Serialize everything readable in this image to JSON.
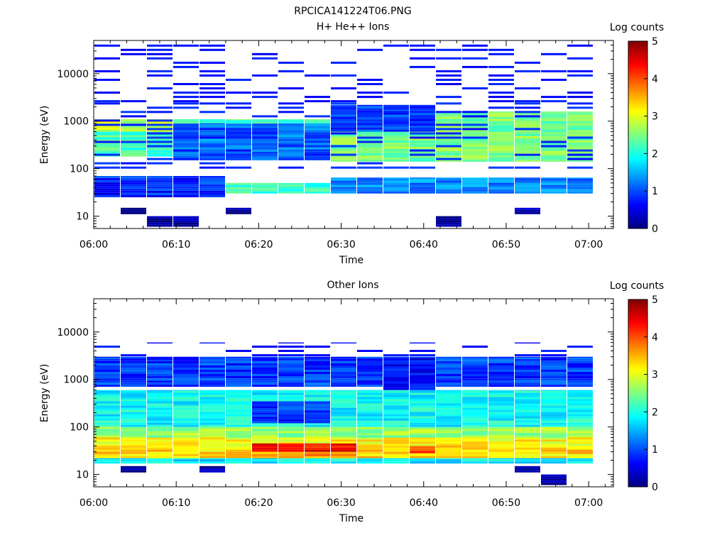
{
  "figure_title": "RPCICA141224T06.PNG",
  "colormap": [
    "#00007f",
    "#0000ff",
    "#007fff",
    "#00ffff",
    "#7fff7f",
    "#ffff00",
    "#ff7f00",
    "#ff0000",
    "#7f0000"
  ],
  "chart_data": [
    {
      "type": "heatmap",
      "title": "H+ He++ Ions",
      "xlabel": "Time",
      "ylabel": "Energy (eV)",
      "x_ticks": [
        "06:00",
        "06:10",
        "06:20",
        "06:30",
        "06:40",
        "06:50",
        "07:00"
      ],
      "y_ticks": [
        "10",
        "100",
        "1000",
        "10000"
      ],
      "y_scale": "log",
      "ylim": [
        5.5,
        50000
      ],
      "xlim_minutes": [
        0,
        63
      ],
      "colorbar": {
        "label": "Log counts",
        "ticks": [
          "0",
          "1",
          "2",
          "3",
          "4",
          "5"
        ],
        "range": [
          0,
          5
        ]
      },
      "n_columns": 19,
      "bands": [
        {
          "cols": [
            0,
            18
          ],
          "emin": 180,
          "emax": 1100,
          "value": 2.2
        },
        {
          "cols": [
            9,
            18
          ],
          "emin": 140,
          "emax": 1600,
          "value": 2.5
        },
        {
          "cols": [
            0,
            2
          ],
          "emin": 600,
          "emax": 1100,
          "value": 2.8
        },
        {
          "cols": [
            3,
            8
          ],
          "emin": 150,
          "emax": 900,
          "value": 1.2
        },
        {
          "cols": [
            5,
            8
          ],
          "emin": 30,
          "emax": 50,
          "value": 2.1
        },
        {
          "cols": [
            9,
            18
          ],
          "emin": 30,
          "emax": 65,
          "value": 1.3
        },
        {
          "cols": [
            0,
            4
          ],
          "emin": 25,
          "emax": 70,
          "value": 0.8
        },
        {
          "cols": [
            9,
            12
          ],
          "emin": 600,
          "emax": 2200,
          "value": 0.9
        },
        {
          "cols": [
            0,
            18
          ],
          "emin": 2500,
          "emax": 45000,
          "value": 0.7,
          "sparse": true
        },
        {
          "cols": [
            0,
            18
          ],
          "emin": 100,
          "emax": 2500,
          "value": 0.8,
          "sparse": true
        },
        {
          "cols": [
            1,
            1
          ],
          "emin": 11,
          "emax": 15,
          "value": 0.2
        },
        {
          "cols": [
            2,
            3
          ],
          "emin": 6,
          "emax": 10,
          "value": 0.1
        },
        {
          "cols": [
            5,
            5
          ],
          "emin": 11,
          "emax": 15,
          "value": 0.2
        },
        {
          "cols": [
            13,
            13
          ],
          "emin": 6,
          "emax": 10,
          "value": 0.1
        },
        {
          "cols": [
            16,
            16
          ],
          "emin": 11,
          "emax": 15,
          "value": 0.2
        }
      ]
    },
    {
      "type": "heatmap",
      "title": "Other Ions",
      "xlabel": "Time",
      "ylabel": "Energy (eV)",
      "x_ticks": [
        "06:00",
        "06:10",
        "06:20",
        "06:30",
        "06:40",
        "06:50",
        "07:00"
      ],
      "y_ticks": [
        "10",
        "100",
        "1000",
        "10000"
      ],
      "y_scale": "log",
      "ylim": [
        5.5,
        50000
      ],
      "xlim_minutes": [
        0,
        63
      ],
      "colorbar": {
        "label": "Log counts",
        "ticks": [
          "0",
          "1",
          "2",
          "3",
          "4",
          "5"
        ],
        "range": [
          0,
          5
        ]
      },
      "n_columns": 19,
      "bands": [
        {
          "cols": [
            0,
            18
          ],
          "emin": 100,
          "emax": 600,
          "value": 1.9
        },
        {
          "cols": [
            0,
            18
          ],
          "emin": 60,
          "emax": 100,
          "value": 2.6
        },
        {
          "cols": [
            0,
            18
          ],
          "emin": 40,
          "emax": 60,
          "value": 3.1
        },
        {
          "cols": [
            0,
            18
          ],
          "emin": 22,
          "emax": 40,
          "value": 3.3
        },
        {
          "cols": [
            0,
            18
          ],
          "emin": 17,
          "emax": 22,
          "value": 1.8
        },
        {
          "cols": [
            6,
            9
          ],
          "emin": 30,
          "emax": 45,
          "value": 4.4
        },
        {
          "cols": [
            6,
            9
          ],
          "emin": 22,
          "emax": 30,
          "value": 3.6
        },
        {
          "cols": [
            12,
            12
          ],
          "emin": 28,
          "emax": 40,
          "value": 4.0
        },
        {
          "cols": [
            0,
            18
          ],
          "emin": 700,
          "emax": 3000,
          "value": 0.9
        },
        {
          "cols": [
            11,
            12
          ],
          "emin": 600,
          "emax": 2800,
          "value": 0.6
        },
        {
          "cols": [
            6,
            8
          ],
          "emin": 120,
          "emax": 350,
          "value": 0.9
        },
        {
          "cols": [
            0,
            18
          ],
          "emin": 2500,
          "emax": 6000,
          "value": 0.7,
          "sparse": true
        },
        {
          "cols": [
            1,
            1
          ],
          "emin": 11,
          "emax": 15,
          "value": 0.2
        },
        {
          "cols": [
            4,
            4
          ],
          "emin": 11,
          "emax": 15,
          "value": 0.2
        },
        {
          "cols": [
            16,
            16
          ],
          "emin": 11,
          "emax": 15,
          "value": 0.2
        },
        {
          "cols": [
            17,
            17
          ],
          "emin": 6,
          "emax": 10,
          "value": 0.1
        }
      ]
    }
  ]
}
